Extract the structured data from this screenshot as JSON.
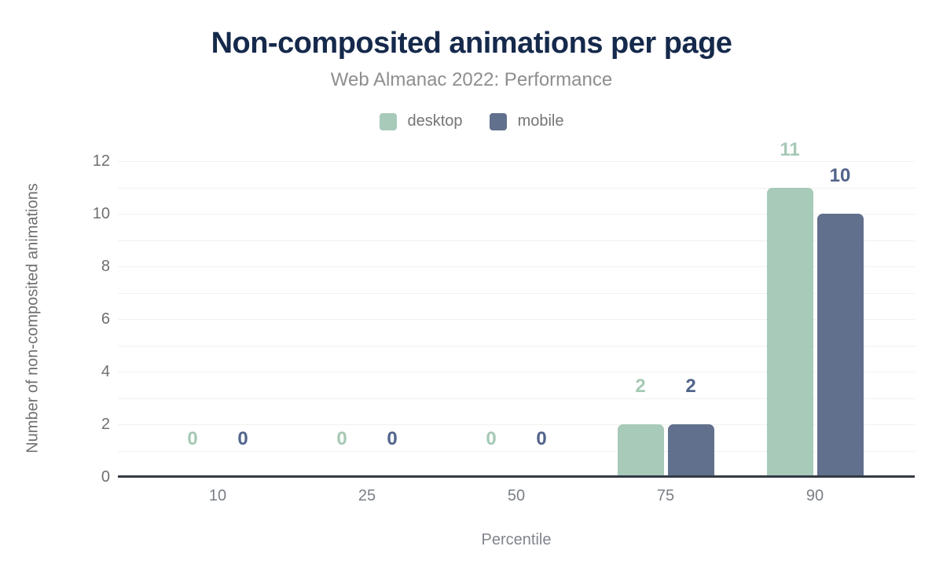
{
  "chart_data": {
    "type": "bar",
    "title": "Non-composited animations per page",
    "subtitle": "Web Almanac 2022: Performance",
    "categories": [
      "10",
      "25",
      "50",
      "75",
      "90"
    ],
    "series": [
      {
        "name": "desktop",
        "values": [
          0,
          0,
          0,
          2,
          11
        ],
        "color": "#a8cab9",
        "label_color": "#a6c9b4"
      },
      {
        "name": "mobile",
        "values": [
          0,
          0,
          0,
          2,
          10
        ],
        "color": "#61708c",
        "label_color": "#52648a"
      }
    ],
    "xlabel": "Percentile",
    "ylabel": "Number of non-composited animations",
    "ylim": [
      0,
      12
    ],
    "yticks": [
      0,
      2,
      4,
      6,
      8,
      10,
      12
    ],
    "grid": "horizontal, step 1",
    "gridline_color": "#f1f1f1",
    "axis_line_color": "#343b44",
    "legend_position": "top",
    "data_labels": true,
    "title_color": "#15294b",
    "subtitle_color": "#8e8e8e"
  }
}
